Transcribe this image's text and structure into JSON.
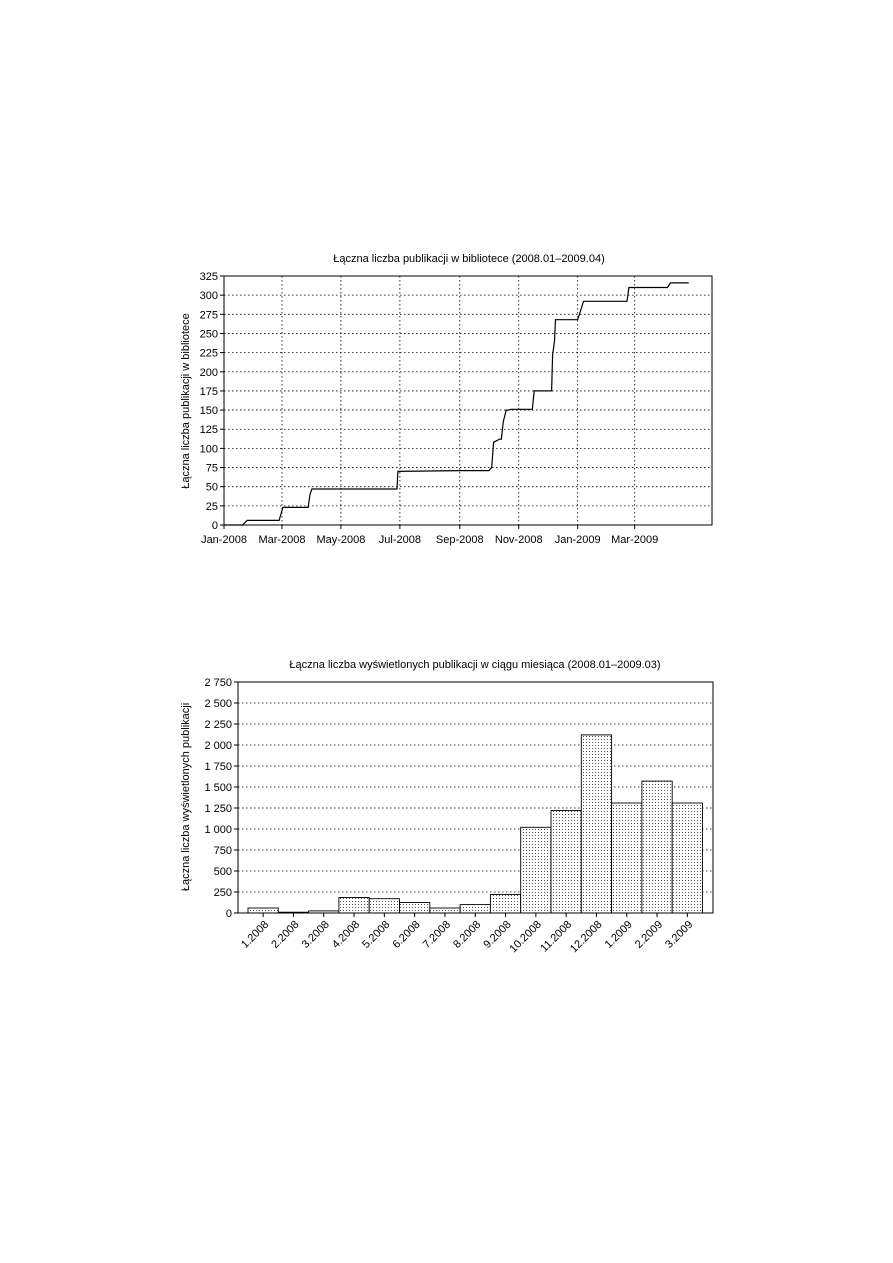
{
  "chart_data": [
    {
      "type": "line",
      "title": "Łączna liczba publikacji w bibliotece (2008.01–2009.04)",
      "ylabel": "Łączna liczba publikacji w bibliotece",
      "xlabel": "",
      "ylim": [
        0,
        325
      ],
      "xlim": [
        "2008-01-01",
        "2009-05-20"
      ],
      "grid": true,
      "x_ticks": [
        "Jan-2008",
        "Mar-2008",
        "May-2008",
        "Jul-2008",
        "Sep-2008",
        "Nov-2008",
        "Jan-2009",
        "Mar-2009"
      ],
      "x_tick_dates": [
        "2008-01-01",
        "2008-03-01",
        "2008-05-01",
        "2008-07-01",
        "2008-09-01",
        "2008-11-01",
        "2009-01-01",
        "2009-03-01"
      ],
      "y_ticks": [
        "0",
        "25",
        "50",
        "75",
        "100",
        "125",
        "150",
        "175",
        "200",
        "225",
        "250",
        "275",
        "300",
        "325"
      ],
      "series": [
        {
          "x": [
            "2008-01-01",
            "2008-01-20",
            "2008-01-25",
            "2008-02-27",
            "2008-03-02",
            "2008-03-28",
            "2008-03-30",
            "2008-04-01",
            "2008-06-28",
            "2008-06-29",
            "2008-09-01",
            "2008-10-01",
            "2008-10-04",
            "2008-10-06",
            "2008-10-12",
            "2008-10-14",
            "2008-10-16",
            "2008-10-19",
            "2008-10-21",
            "2008-10-24",
            "2008-11-01",
            "2008-11-15",
            "2008-11-17",
            "2008-12-05",
            "2008-12-06",
            "2008-12-08",
            "2008-12-09",
            "2008-12-11",
            "2009-01-01",
            "2009-01-04",
            "2009-01-07",
            "2009-02-21",
            "2009-02-23",
            "2009-04-04",
            "2009-04-07",
            "2009-04-26"
          ],
          "y": [
            0,
            0,
            6,
            6,
            23,
            23,
            40,
            47,
            47,
            70,
            71,
            71,
            75,
            108,
            112,
            112,
            135,
            150,
            150,
            151,
            151,
            151,
            175,
            175,
            222,
            240,
            268,
            268,
            268,
            280,
            292,
            292,
            310,
            310,
            316,
            316
          ]
        }
      ]
    },
    {
      "type": "bar",
      "title": "Łączna liczba wyświetlonych publikacji w ciągu miesiąca (2008.01–2009.03)",
      "ylabel": "Łączna liczba wyświetlonych publikacji",
      "xlabel": "",
      "ylim": [
        0,
        2750
      ],
      "grid": true,
      "y_ticks": [
        "0",
        "250",
        "500",
        "750",
        "1 000",
        "1 250",
        "1 500",
        "1 750",
        "2 000",
        "2 250",
        "2 500",
        "2 750"
      ],
      "categories": [
        "1.2008",
        "2.2008",
        "3.2008",
        "4.2008",
        "5.2008",
        "6.2008",
        "7.2008",
        "8.2008",
        "9.2008",
        "10.2008",
        "11.2008",
        "12.2008",
        "1.2009",
        "2.2009",
        "3.2009"
      ],
      "values": [
        60,
        10,
        25,
        185,
        170,
        125,
        60,
        100,
        220,
        1020,
        1220,
        2120,
        1310,
        1570,
        1310
      ]
    }
  ]
}
